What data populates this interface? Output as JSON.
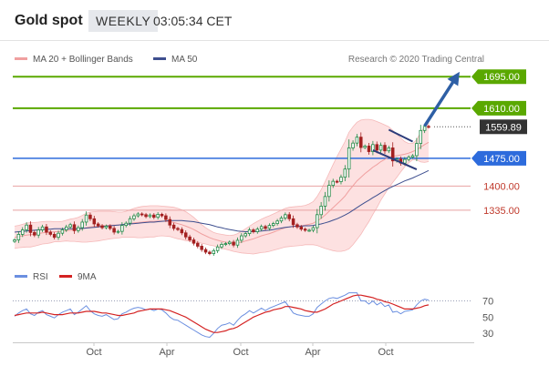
{
  "header": {
    "title": "Gold spot",
    "period": "WEEKLY",
    "time": "03:05:34 CET"
  },
  "attribution": "Research © 2020 Trading Central",
  "legend": {
    "bollinger": "MA 20 + Bollinger Bands",
    "ma50": "MA 50",
    "rsi": "RSI",
    "ma9": "9MA"
  },
  "colors": {
    "green": "#5aa800",
    "blue": "#2d6bdc",
    "red": "#c0392b",
    "pink_line": "#e8a2a2",
    "band_fill": "#fde1e1",
    "band_edge": "#f5b9b9",
    "ma20": "#f0a0a0",
    "ma50": "#3e4f8f",
    "candle_up": "#1e8a46",
    "candle_down": "#a32020",
    "trend": "#2d3c7a",
    "arrow": "#2e5fa5",
    "last_box": "#333333",
    "rsi": "#6b8fe0",
    "rsi_ma": "#d42222",
    "grid_dots": "#9aa0b8"
  },
  "chart_data": [
    {
      "type": "line",
      "title": "Gold spot",
      "ylim": [
        1190,
        1725
      ],
      "x_ticks": [
        "Oct",
        "Apr",
        "Oct",
        "Apr",
        "Oct"
      ],
      "levels": [
        {
          "value": 1695.0,
          "label": "1695.00",
          "kind": "resistance",
          "color": "green"
        },
        {
          "value": 1610.0,
          "label": "1610.00",
          "kind": "resistance",
          "color": "green"
        },
        {
          "value": 1559.89,
          "label": "1559.89",
          "kind": "last",
          "color": "last_box"
        },
        {
          "value": 1475.0,
          "label": "1475.00",
          "kind": "pivot",
          "color": "blue"
        },
        {
          "value": 1400.0,
          "label": "1400.00",
          "kind": "support",
          "color": "red"
        },
        {
          "value": 1335.0,
          "label": "1335.00",
          "kind": "support",
          "color": "red"
        }
      ],
      "close": [
        1255,
        1270,
        1282,
        1295,
        1275,
        1268,
        1282,
        1290,
        1276,
        1270,
        1262,
        1273,
        1282,
        1290,
        1296,
        1280,
        1288,
        1303,
        1322,
        1312,
        1298,
        1293,
        1288,
        1292,
        1286,
        1276,
        1278,
        1294,
        1300,
        1312,
        1320,
        1325,
        1323,
        1318,
        1322,
        1316,
        1324,
        1320,
        1310,
        1295,
        1286,
        1283,
        1274,
        1263,
        1255,
        1246,
        1238,
        1229,
        1222,
        1218,
        1226,
        1236,
        1243,
        1245,
        1249,
        1241,
        1254,
        1266,
        1272,
        1282,
        1277,
        1284,
        1291,
        1286,
        1294,
        1299,
        1306,
        1314,
        1323,
        1312,
        1296,
        1290,
        1284,
        1281,
        1281,
        1288,
        1323,
        1346,
        1372,
        1402,
        1413,
        1412,
        1424,
        1446,
        1503,
        1516,
        1532,
        1504,
        1508,
        1493,
        1512,
        1497,
        1510,
        1495,
        1503,
        1468,
        1473,
        1462,
        1472,
        1478,
        1482,
        1515,
        1550,
        1561,
        1559.89
      ],
      "ma20": [
        1262,
        1264,
        1266,
        1268,
        1269,
        1270,
        1272,
        1274,
        1275,
        1276,
        1277,
        1277,
        1278,
        1280,
        1281,
        1282,
        1283,
        1285,
        1288,
        1290,
        1291,
        1292,
        1293,
        1294,
        1295,
        1295,
        1295,
        1296,
        1297,
        1299,
        1301,
        1302,
        1303,
        1304,
        1305,
        1305,
        1306,
        1306,
        1305,
        1304,
        1302,
        1299,
        1296,
        1292,
        1288,
        1283,
        1277,
        1271,
        1266,
        1261,
        1257,
        1254,
        1251,
        1249,
        1247,
        1246,
        1247,
        1249,
        1252,
        1255,
        1258,
        1262,
        1266,
        1269,
        1272,
        1276,
        1280,
        1284,
        1288,
        1290,
        1291,
        1292,
        1293,
        1295,
        1297,
        1300,
        1306,
        1313,
        1322,
        1332,
        1342,
        1352,
        1362,
        1373,
        1388,
        1401,
        1414,
        1424,
        1434,
        1442,
        1451,
        1458,
        1466,
        1472,
        1478,
        1480,
        1482,
        1484,
        1486,
        1489,
        1493,
        1498,
        1505,
        1512,
        1518
      ],
      "boll_upper": [
        1292,
        1294,
        1297,
        1300,
        1302,
        1302,
        1303,
        1304,
        1305,
        1305,
        1304,
        1304,
        1305,
        1308,
        1311,
        1313,
        1316,
        1321,
        1327,
        1330,
        1331,
        1332,
        1332,
        1332,
        1332,
        1331,
        1330,
        1330,
        1332,
        1336,
        1340,
        1343,
        1345,
        1346,
        1347,
        1347,
        1347,
        1346,
        1345,
        1344,
        1343,
        1340,
        1336,
        1331,
        1324,
        1316,
        1306,
        1296,
        1288,
        1281,
        1275,
        1272,
        1270,
        1268,
        1267,
        1268,
        1272,
        1278,
        1285,
        1292,
        1299,
        1305,
        1311,
        1316,
        1320,
        1325,
        1330,
        1335,
        1340,
        1343,
        1344,
        1345,
        1346,
        1348,
        1352,
        1358,
        1372,
        1390,
        1412,
        1435,
        1458,
        1480,
        1500,
        1520,
        1545,
        1560,
        1572,
        1578,
        1580,
        1580,
        1578,
        1574,
        1570,
        1565,
        1560,
        1550,
        1540,
        1530,
        1520,
        1515,
        1515,
        1525,
        1545,
        1560,
        1570
      ],
      "boll_lower": [
        1232,
        1234,
        1235,
        1236,
        1236,
        1238,
        1241,
        1244,
        1245,
        1247,
        1250,
        1250,
        1251,
        1252,
        1251,
        1251,
        1250,
        1249,
        1249,
        1250,
        1251,
        1252,
        1254,
        1256,
        1258,
        1259,
        1260,
        1262,
        1262,
        1262,
        1262,
        1261,
        1261,
        1262,
        1263,
        1263,
        1265,
        1266,
        1265,
        1264,
        1261,
        1258,
        1256,
        1253,
        1252,
        1250,
        1248,
        1246,
        1244,
        1241,
        1239,
        1236,
        1232,
        1230,
        1227,
        1224,
        1222,
        1220,
        1219,
        1218,
        1217,
        1219,
        1221,
        1222,
        1224,
        1227,
        1230,
        1233,
        1236,
        1237,
        1238,
        1239,
        1240,
        1242,
        1242,
        1242,
        1240,
        1236,
        1232,
        1229,
        1226,
        1224,
        1224,
        1226,
        1231,
        1242,
        1256,
        1270,
        1288,
        1304,
        1324,
        1342,
        1362,
        1379,
        1396,
        1410,
        1424,
        1438,
        1452,
        1463,
        1471,
        1471,
        1465,
        1464,
        1466
      ],
      "ma50": [
        1276,
        1277,
        1278,
        1279,
        1280,
        1281,
        1282,
        1283,
        1284,
        1284,
        1285,
        1285,
        1285,
        1285,
        1285,
        1285,
        1285,
        1286,
        1287,
        1288,
        1289,
        1290,
        1291,
        1292,
        1293,
        1294,
        1295,
        1296,
        1297,
        1298,
        1299,
        1300,
        1301,
        1302,
        1303,
        1303,
        1304,
        1305,
        1306,
        1307,
        1307,
        1307,
        1307,
        1306,
        1305,
        1304,
        1302,
        1300,
        1298,
        1296,
        1293,
        1290,
        1288,
        1285,
        1283,
        1281,
        1279,
        1278,
        1277,
        1277,
        1277,
        1278,
        1279,
        1280,
        1281,
        1283,
        1285,
        1287,
        1289,
        1290,
        1291,
        1292,
        1292,
        1293,
        1293,
        1294,
        1296,
        1298,
        1301,
        1304,
        1308,
        1312,
        1317,
        1322,
        1328,
        1335,
        1342,
        1349,
        1356,
        1362,
        1369,
        1375,
        1382,
        1388,
        1394,
        1399,
        1404,
        1409,
        1414,
        1418,
        1422,
        1427,
        1432,
        1437,
        1442
      ],
      "trendlines": [
        {
          "from": [
            94,
            1552
          ],
          "to": [
            100,
            1520
          ],
          "name": "upper-channel"
        },
        {
          "from": [
            90,
            1497
          ],
          "to": [
            101,
            1445
          ],
          "name": "lower-channel"
        }
      ],
      "projection": {
        "from": [
          103,
          1562
        ],
        "to": [
          111,
          1695
        ]
      }
    },
    {
      "type": "line",
      "ylim": [
        20,
        84
      ],
      "y_ticks": [
        70,
        50,
        30
      ],
      "rsi": [
        51,
        55,
        58,
        60,
        54,
        52,
        56,
        58,
        53,
        51,
        49,
        53,
        56,
        58,
        60,
        53,
        56,
        60,
        64,
        58,
        54,
        52,
        51,
        53,
        50,
        47,
        48,
        54,
        56,
        59,
        61,
        62,
        61,
        59,
        60,
        58,
        60,
        59,
        55,
        50,
        47,
        46,
        43,
        40,
        37,
        34,
        31,
        28,
        26,
        25,
        30,
        36,
        40,
        41,
        43,
        40,
        46,
        51,
        54,
        58,
        55,
        58,
        61,
        58,
        61,
        63,
        65,
        67,
        69,
        62,
        55,
        53,
        52,
        51,
        51,
        54,
        62,
        66,
        70,
        73,
        74,
        73,
        75,
        77,
        80,
        80,
        80,
        70,
        70,
        66,
        70,
        65,
        68,
        63,
        65,
        56,
        57,
        54,
        57,
        58,
        59,
        65,
        70,
        72,
        71
      ],
      "rsi_ma": [
        52,
        53,
        54,
        55,
        55,
        55,
        55,
        56,
        55,
        54,
        53,
        53,
        53,
        54,
        55,
        55,
        55,
        56,
        57,
        57,
        57,
        56,
        55,
        55,
        54,
        53,
        52,
        52,
        53,
        54,
        55,
        57,
        58,
        59,
        60,
        60,
        60,
        60,
        59,
        58,
        56,
        54,
        52,
        50,
        47,
        44,
        41,
        38,
        35,
        33,
        31,
        31,
        32,
        33,
        35,
        36,
        38,
        41,
        44,
        47,
        50,
        52,
        54,
        56,
        57,
        59,
        60,
        61,
        63,
        63,
        62,
        61,
        60,
        58,
        57,
        56,
        56,
        58,
        60,
        63,
        66,
        68,
        70,
        72,
        74,
        76,
        77,
        77,
        76,
        75,
        74,
        72,
        71,
        69,
        68,
        66,
        64,
        62,
        60,
        60,
        60,
        61,
        62,
        64,
        65
      ]
    }
  ]
}
